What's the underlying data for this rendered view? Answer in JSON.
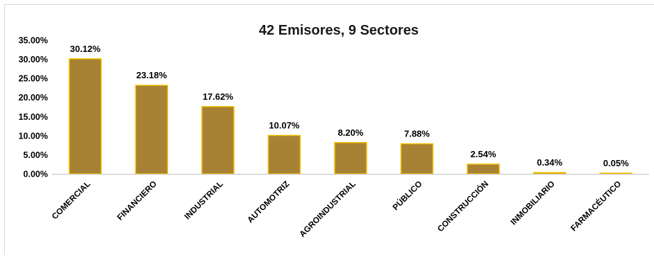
{
  "chart_data": {
    "type": "bar",
    "title": "42 Emisores, 9 Sectores",
    "xlabel": "",
    "ylabel": "",
    "categories": [
      "COMERCIAL",
      "FINANCIERO",
      "INDUSTRIAL",
      "AUTOMOTRIZ",
      "AGROINDUSTRIAL",
      "PÚBLICO",
      "CONSTRUCCIÓN",
      "INMOBILIARIO",
      "FARMACÉUTICO"
    ],
    "values": [
      30.12,
      23.18,
      17.62,
      10.07,
      8.2,
      7.88,
      2.54,
      0.34,
      0.05
    ],
    "data_labels": [
      "30.12%",
      "23.18%",
      "17.62%",
      "10.07%",
      "8.20%",
      "7.88%",
      "2.54%",
      "0.34%",
      "0.05%"
    ],
    "y_ticks": [
      0,
      5,
      10,
      15,
      20,
      25,
      30,
      35
    ],
    "y_tick_labels": [
      "0.00%",
      "5.00%",
      "10.00%",
      "15.00%",
      "20.00%",
      "25.00%",
      "30.00%",
      "35.00%"
    ],
    "ylim": [
      0,
      35
    ],
    "grid": false,
    "legend": "none",
    "colors": {
      "bar_fill": "#A88234",
      "bar_edge": "#F2C200",
      "axis": "#bfbfbf"
    }
  }
}
